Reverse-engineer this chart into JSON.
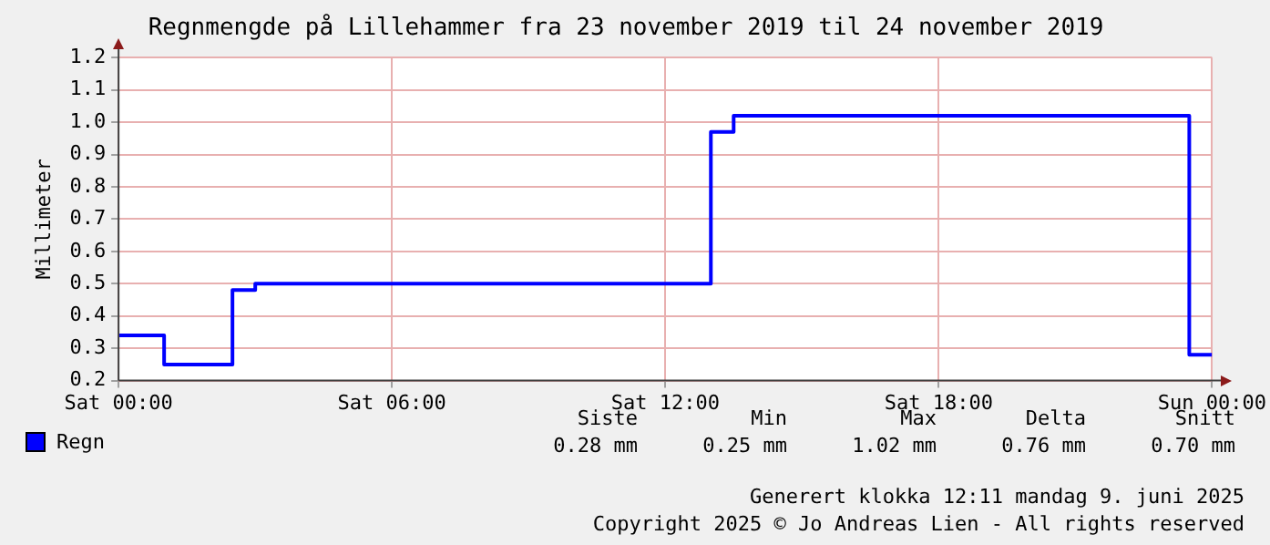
{
  "chart_data": {
    "type": "step",
    "title": "Regnmengde på Lillehammer fra 23 november 2019 til 24 november 2019",
    "ylabel": "Millimeter",
    "series": [
      {
        "name": "Regn",
        "color": "#0000ff",
        "x": [
          "2019-11-23T00:00",
          "2019-11-23T01:00",
          "2019-11-23T02:30",
          "2019-11-23T03:00",
          "2019-11-23T13:00",
          "2019-11-23T13:30",
          "2019-11-23T23:30",
          "2019-11-24T00:00"
        ],
        "values": [
          0.34,
          0.25,
          0.48,
          0.5,
          0.97,
          1.02,
          0.28,
          0.28
        ]
      }
    ],
    "xlim": [
      "2019-11-23T00:00",
      "2019-11-24T00:00"
    ],
    "xticks": [
      {
        "value": "2019-11-23T00:00",
        "label": "Sat 00:00"
      },
      {
        "value": "2019-11-23T06:00",
        "label": "Sat 06:00"
      },
      {
        "value": "2019-11-23T12:00",
        "label": "Sat 12:00"
      },
      {
        "value": "2019-11-23T18:00",
        "label": "Sat 18:00"
      },
      {
        "value": "2019-11-24T00:00",
        "label": "Sun 00:00"
      }
    ],
    "ylim": [
      0.2,
      1.2
    ],
    "yticks": [
      {
        "value": 0.2,
        "label": "0.2"
      },
      {
        "value": 0.3,
        "label": "0.3"
      },
      {
        "value": 0.4,
        "label": "0.4"
      },
      {
        "value": 0.5,
        "label": "0.5"
      },
      {
        "value": 0.6,
        "label": "0.6"
      },
      {
        "value": 0.7,
        "label": "0.7"
      },
      {
        "value": 0.8,
        "label": "0.8"
      },
      {
        "value": 0.9,
        "label": "0.9"
      },
      {
        "value": 1.0,
        "label": "1.0"
      },
      {
        "value": 1.1,
        "label": "1.1"
      },
      {
        "value": 1.2,
        "label": "1.2"
      }
    ],
    "grid": true,
    "legend": "bottom left",
    "line_style": "solid",
    "marker": "none",
    "annotations": [
      "Siste",
      "Min",
      "Max",
      "Delta",
      "Snitt",
      "0.28 mm",
      "0.25 mm",
      "1.02 mm",
      "0.76 mm",
      "0.70 mm",
      "Generert klokka 12:11 mandag 9. juni 2025",
      "Copyright 2025 © Jo Andreas Lien - All rights reserved"
    ]
  }
}
